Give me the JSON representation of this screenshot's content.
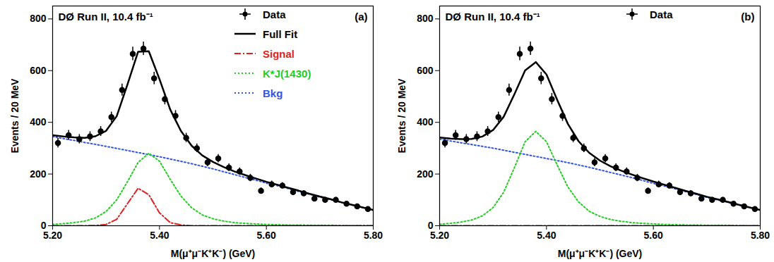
{
  "chart_data": [
    {
      "type": "line",
      "title": "DØ Run II, 10.4 fb⁻¹",
      "annotations": [
        "(a)"
      ],
      "x_label": "M(μ⁺μ⁻K⁺K⁻) (GeV)",
      "y_label": "Events / 20 MeV",
      "xlim": [
        5.2,
        5.8
      ],
      "xticks": [
        5.2,
        5.4,
        5.6,
        5.8
      ],
      "ylim": [
        0,
        850
      ],
      "yticks": [
        0,
        200,
        400,
        600,
        800
      ],
      "grid": false,
      "legend": "upper right",
      "series": [
        {
          "name": "Data",
          "type": "scatter",
          "marker": "circle",
          "color": "#000000",
          "x": [
            5.21,
            5.23,
            5.25,
            5.27,
            5.29,
            5.31,
            5.33,
            5.35,
            5.37,
            5.39,
            5.41,
            5.43,
            5.45,
            5.47,
            5.49,
            5.51,
            5.53,
            5.55,
            5.57,
            5.59,
            5.61,
            5.63,
            5.65,
            5.67,
            5.69,
            5.71,
            5.73,
            5.75,
            5.77,
            5.79
          ],
          "values": [
            320,
            350,
            335,
            345,
            365,
            420,
            525,
            665,
            685,
            570,
            490,
            425,
            340,
            300,
            245,
            260,
            225,
            210,
            185,
            135,
            160,
            155,
            130,
            125,
            105,
            100,
            100,
            85,
            75,
            65
          ],
          "errors": [
            18,
            19,
            18,
            19,
            19,
            20,
            23,
            26,
            26,
            24,
            22,
            21,
            18,
            17,
            16,
            16,
            15,
            14,
            14,
            12,
            13,
            12,
            11,
            11,
            10,
            10,
            10,
            9,
            9,
            8
          ]
        },
        {
          "name": "Full Fit",
          "type": "line",
          "line_style": "solid",
          "color": "#000000",
          "x": [
            5.2,
            5.22,
            5.24,
            5.26,
            5.28,
            5.3,
            5.32,
            5.34,
            5.36,
            5.38,
            5.4,
            5.42,
            5.44,
            5.46,
            5.48,
            5.5,
            5.52,
            5.54,
            5.56,
            5.58,
            5.6,
            5.62,
            5.64,
            5.66,
            5.68,
            5.7,
            5.72,
            5.74,
            5.76,
            5.78,
            5.8
          ],
          "values": [
            350,
            345,
            342,
            340,
            346,
            367,
            424,
            546,
            673,
            675,
            567,
            450,
            367,
            310,
            272,
            247,
            227,
            210,
            196,
            183,
            170,
            159,
            147,
            136,
            124,
            113,
            103,
            91,
            81,
            71,
            61
          ]
        },
        {
          "name": "Signal",
          "type": "line",
          "line_style": "dashdot",
          "color": "#dd2222",
          "x": [
            5.2,
            5.22,
            5.24,
            5.26,
            5.28,
            5.3,
            5.32,
            5.34,
            5.36,
            5.38,
            5.4,
            5.42,
            5.44,
            5.46,
            5.48,
            5.5,
            5.52,
            5.54,
            5.56,
            5.58,
            5.6,
            5.62,
            5.64,
            5.66,
            5.68,
            5.7,
            5.72,
            5.74,
            5.76,
            5.78,
            5.8
          ],
          "values": [
            0,
            0,
            0,
            0,
            1,
            5,
            25,
            85,
            145,
            120,
            50,
            12,
            3,
            0,
            0,
            0,
            0,
            0,
            0,
            0,
            0,
            0,
            0,
            0,
            0,
            0,
            0,
            0,
            0,
            0,
            0
          ]
        },
        {
          "name": "K*J(1430)",
          "type": "line",
          "line_style": "dotted",
          "color": "#22cc22",
          "x": [
            5.2,
            5.22,
            5.24,
            5.26,
            5.28,
            5.3,
            5.32,
            5.34,
            5.36,
            5.38,
            5.4,
            5.42,
            5.44,
            5.46,
            5.48,
            5.5,
            5.52,
            5.54,
            5.56,
            5.58,
            5.6,
            5.62,
            5.64,
            5.66,
            5.68,
            5.7,
            5.72,
            5.74,
            5.76,
            5.78,
            5.8
          ],
          "values": [
            5,
            8,
            12,
            18,
            30,
            55,
            100,
            170,
            245,
            280,
            250,
            180,
            115,
            70,
            42,
            27,
            18,
            12,
            9,
            7,
            5,
            4,
            3,
            3,
            2,
            2,
            2,
            1,
            1,
            1,
            1
          ]
        },
        {
          "name": "Bkg",
          "type": "line",
          "line_style": "dotted",
          "color": "#3355dd",
          "x": [
            5.2,
            5.22,
            5.24,
            5.26,
            5.28,
            5.3,
            5.32,
            5.34,
            5.36,
            5.38,
            5.4,
            5.42,
            5.44,
            5.46,
            5.48,
            5.5,
            5.52,
            5.54,
            5.56,
            5.58,
            5.6,
            5.62,
            5.64,
            5.66,
            5.68,
            5.7,
            5.72,
            5.74,
            5.76,
            5.78,
            5.8
          ],
          "values": [
            345,
            337,
            330,
            322,
            315,
            307,
            299,
            291,
            283,
            275,
            267,
            258,
            249,
            240,
            230,
            220,
            209,
            198,
            187,
            176,
            165,
            155,
            144,
            133,
            122,
            111,
            101,
            90,
            80,
            70,
            60
          ]
        }
      ]
    },
    {
      "type": "line",
      "title": "DØ Run II, 10.4 fb⁻¹",
      "annotations": [
        "(b)"
      ],
      "x_label": "M(μ⁺μ⁻K⁺K⁻) (GeV)",
      "y_label": "Events / 20 MeV",
      "xlim": [
        5.2,
        5.8
      ],
      "xticks": [
        5.2,
        5.4,
        5.6,
        5.8
      ],
      "ylim": [
        0,
        850
      ],
      "yticks": [
        0,
        200,
        400,
        600,
        800
      ],
      "grid": false,
      "legend": "upper right",
      "series": [
        {
          "name": "Data",
          "type": "scatter",
          "marker": "circle",
          "color": "#000000",
          "x": [
            5.21,
            5.23,
            5.25,
            5.27,
            5.29,
            5.31,
            5.33,
            5.35,
            5.37,
            5.39,
            5.41,
            5.43,
            5.45,
            5.47,
            5.49,
            5.51,
            5.53,
            5.55,
            5.57,
            5.59,
            5.61,
            5.63,
            5.65,
            5.67,
            5.69,
            5.71,
            5.73,
            5.75,
            5.77,
            5.79
          ],
          "values": [
            320,
            350,
            335,
            345,
            365,
            420,
            525,
            665,
            685,
            570,
            490,
            425,
            340,
            300,
            245,
            260,
            225,
            210,
            185,
            135,
            160,
            155,
            130,
            125,
            105,
            100,
            100,
            85,
            75,
            65
          ],
          "errors": [
            18,
            19,
            18,
            19,
            19,
            20,
            23,
            26,
            26,
            24,
            22,
            21,
            18,
            17,
            16,
            16,
            15,
            14,
            14,
            12,
            13,
            12,
            11,
            11,
            10,
            10,
            10,
            9,
            9,
            8
          ]
        },
        {
          "type": "line",
          "line_style": "solid",
          "color": "#000000",
          "x": [
            5.2,
            5.22,
            5.24,
            5.26,
            5.28,
            5.3,
            5.32,
            5.34,
            5.36,
            5.38,
            5.4,
            5.42,
            5.44,
            5.46,
            5.48,
            5.5,
            5.52,
            5.54,
            5.56,
            5.58,
            5.6,
            5.62,
            5.64,
            5.66,
            5.68,
            5.7,
            5.72,
            5.74,
            5.76,
            5.78,
            5.8
          ],
          "values": [
            341,
            337,
            335,
            336,
            345,
            370,
            422,
            509,
            601,
            633,
            585,
            487,
            394,
            327,
            282,
            252,
            230,
            213,
            198,
            184,
            171,
            159,
            147,
            135,
            124,
            112,
            102,
            92,
            81,
            71,
            61
          ]
        },
        {
          "type": "line",
          "line_style": "dashdot",
          "color": "#dd2222",
          "x": [
            5.2,
            5.22,
            5.24,
            5.26,
            5.28,
            5.3,
            5.32,
            5.34,
            5.36,
            5.38,
            5.4,
            5.42,
            5.44,
            5.46,
            5.48,
            5.5,
            5.52,
            5.54,
            5.56,
            5.58,
            5.6,
            5.62,
            5.64,
            5.66,
            5.68,
            5.7,
            5.72,
            5.74,
            5.76,
            5.78,
            5.8
          ],
          "values": [
            0,
            0,
            0,
            0,
            0,
            0,
            0,
            0,
            0,
            0,
            0,
            0,
            0,
            0,
            0,
            0,
            0,
            0,
            0,
            0,
            0,
            0,
            0,
            0,
            0,
            0,
            0,
            0,
            0,
            0,
            0
          ]
        },
        {
          "type": "line",
          "line_style": "dotted",
          "color": "#22cc22",
          "x": [
            5.2,
            5.22,
            5.24,
            5.26,
            5.28,
            5.3,
            5.32,
            5.34,
            5.36,
            5.38,
            5.4,
            5.42,
            5.44,
            5.46,
            5.48,
            5.5,
            5.52,
            5.54,
            5.56,
            5.58,
            5.6,
            5.62,
            5.64,
            5.66,
            5.68,
            5.7,
            5.72,
            5.74,
            5.76,
            5.78,
            5.8
          ],
          "values": [
            6,
            9,
            14,
            22,
            38,
            70,
            130,
            225,
            325,
            365,
            325,
            235,
            150,
            92,
            56,
            36,
            24,
            17,
            12,
            9,
            7,
            5,
            4,
            3,
            3,
            2,
            2,
            2,
            1,
            1,
            1
          ]
        },
        {
          "type": "line",
          "line_style": "dotted",
          "color": "#3355dd",
          "x": [
            5.2,
            5.22,
            5.24,
            5.26,
            5.28,
            5.3,
            5.32,
            5.34,
            5.36,
            5.38,
            5.4,
            5.42,
            5.44,
            5.46,
            5.48,
            5.5,
            5.52,
            5.54,
            5.56,
            5.58,
            5.6,
            5.62,
            5.64,
            5.66,
            5.68,
            5.7,
            5.72,
            5.74,
            5.76,
            5.78,
            5.8
          ],
          "values": [
            335,
            328,
            321,
            314,
            307,
            300,
            292,
            284,
            276,
            268,
            260,
            252,
            244,
            235,
            226,
            216,
            206,
            196,
            186,
            175,
            164,
            154,
            143,
            132,
            121,
            110,
            100,
            90,
            80,
            70,
            60
          ]
        }
      ]
    }
  ]
}
